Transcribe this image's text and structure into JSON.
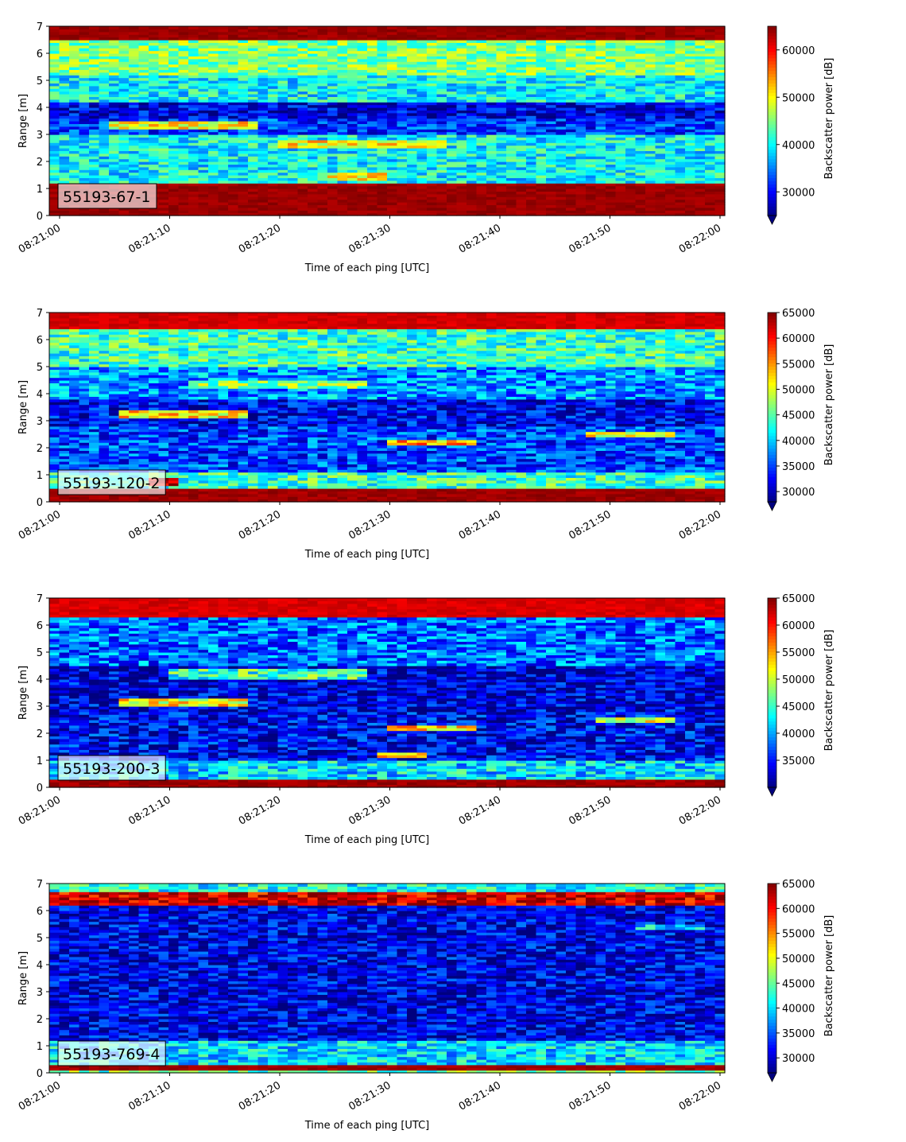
{
  "figure": {
    "colormap": "jet",
    "colors": {
      "jet": [
        "#00007f",
        "#0000ff",
        "#007fff",
        "#00ffff",
        "#7fff7f",
        "#ffff00",
        "#ff7f00",
        "#ff0000",
        "#7f0000"
      ]
    }
  },
  "chart_data": [
    {
      "type": "heatmap",
      "label_box": "55193-67-1",
      "xlabel": "Time of each ping [UTC]",
      "ylabel": "Range [m]",
      "colorbar_label": "Backscatter power [dB]",
      "colorbar_ticks": [
        30000,
        40000,
        50000,
        60000
      ],
      "colorbar_range": [
        25000,
        65000
      ],
      "xlim": [
        "08:21:00",
        "08:22:00"
      ],
      "ylim": [
        0,
        7
      ],
      "x_ticks": [
        "08:21:00",
        "08:21:10",
        "08:21:20",
        "08:21:30",
        "08:21:40",
        "08:21:50",
        "08:22:00"
      ],
      "y_ticks": [
        0,
        1,
        2,
        3,
        4,
        5,
        6,
        7
      ],
      "range_bands": [
        {
          "range": [
            0,
            0.2
          ],
          "value": 65000
        },
        {
          "range": [
            0.2,
            1.2
          ],
          "value": 65000
        },
        {
          "range": [
            1.2,
            2.2
          ],
          "value": 40000
        },
        {
          "range": [
            2.2,
            3.0
          ],
          "value": 40000
        },
        {
          "range": [
            3.0,
            3.6
          ],
          "value": 32000
        },
        {
          "range": [
            3.6,
            4.2
          ],
          "value": 29000
        },
        {
          "range": [
            4.2,
            5.2
          ],
          "value": 40000
        },
        {
          "range": [
            5.2,
            6.5
          ],
          "value": 45000
        },
        {
          "range": [
            6.5,
            7.0
          ],
          "value": 65000
        }
      ],
      "layers": [
        {
          "range": [
            3.2,
            3.5
          ],
          "time": [
            "08:21:04",
            "08:21:18"
          ],
          "value": 50000
        },
        {
          "range": [
            2.5,
            2.8
          ],
          "time": [
            "08:21:20",
            "08:21:35"
          ],
          "value": 50000
        },
        {
          "range": [
            1.3,
            1.6
          ],
          "time": [
            "08:21:24",
            "08:21:30"
          ],
          "value": 50000
        },
        {
          "range": [
            3.7,
            4.2
          ],
          "time": [
            "08:21:38",
            "08:22:00"
          ],
          "value": 29000
        }
      ]
    },
    {
      "type": "heatmap",
      "label_box": "55193-120-2",
      "xlabel": "Time of each ping [UTC]",
      "ylabel": "Range [m]",
      "colorbar_label": "Backscatter power [dB]",
      "colorbar_ticks": [
        30000,
        35000,
        40000,
        45000,
        50000,
        55000,
        60000,
        65000
      ],
      "colorbar_range": [
        28000,
        65000
      ],
      "xlim": [
        "08:21:00",
        "08:22:00"
      ],
      "ylim": [
        0,
        7
      ],
      "x_ticks": [
        "08:21:00",
        "08:21:10",
        "08:21:20",
        "08:21:30",
        "08:21:40",
        "08:21:50",
        "08:22:00"
      ],
      "y_ticks": [
        0,
        1,
        2,
        3,
        4,
        5,
        6,
        7
      ],
      "range_bands": [
        {
          "range": [
            0,
            0.55
          ],
          "value": 65000
        },
        {
          "range": [
            0.55,
            1.1
          ],
          "value": 44000
        },
        {
          "range": [
            1.1,
            2.8
          ],
          "value": 35000
        },
        {
          "range": [
            2.8,
            3.8
          ],
          "value": 32000
        },
        {
          "range": [
            3.8,
            5.0
          ],
          "value": 38000
        },
        {
          "range": [
            5.0,
            6.4
          ],
          "value": 44000
        },
        {
          "range": [
            6.4,
            7.0
          ],
          "value": 63000
        }
      ],
      "layers": [
        {
          "range": [
            3.1,
            3.35
          ],
          "time": [
            "08:21:05",
            "08:21:17"
          ],
          "value": 52000
        },
        {
          "range": [
            4.2,
            4.5
          ],
          "time": [
            "08:21:12",
            "08:21:28"
          ],
          "value": 47000
        },
        {
          "range": [
            2.1,
            2.3
          ],
          "time": [
            "08:21:30",
            "08:21:38"
          ],
          "value": 54000
        },
        {
          "range": [
            2.4,
            2.6
          ],
          "time": [
            "08:21:48",
            "08:21:56"
          ],
          "value": 50000
        },
        {
          "range": [
            0.65,
            0.85
          ],
          "time": [
            "08:21:08",
            "08:21:11"
          ],
          "value": 62000
        }
      ]
    },
    {
      "type": "heatmap",
      "label_box": "55193-200-3",
      "xlabel": "Time of each ping [UTC]",
      "ylabel": "Range [m]",
      "colorbar_label": "Backscatter power [dB]",
      "colorbar_ticks": [
        35000,
        40000,
        45000,
        50000,
        55000,
        60000,
        65000
      ],
      "colorbar_range": [
        30000,
        65000
      ],
      "xlim": [
        "08:21:00",
        "08:22:00"
      ],
      "ylim": [
        0,
        7
      ],
      "x_ticks": [
        "08:21:00",
        "08:21:10",
        "08:21:20",
        "08:21:30",
        "08:21:40",
        "08:21:50",
        "08:22:00"
      ],
      "y_ticks": [
        0,
        1,
        2,
        3,
        4,
        5,
        6,
        7
      ],
      "range_bands": [
        {
          "range": [
            0,
            0.35
          ],
          "value": 65000
        },
        {
          "range": [
            0.35,
            1.0
          ],
          "value": 42000
        },
        {
          "range": [
            1.0,
            2.8
          ],
          "value": 34000
        },
        {
          "range": [
            2.8,
            4.5
          ],
          "value": 33000
        },
        {
          "range": [
            4.5,
            6.3
          ],
          "value": 38000
        },
        {
          "range": [
            6.3,
            7.0
          ],
          "value": 63000
        }
      ],
      "layers": [
        {
          "range": [
            3.05,
            3.3
          ],
          "time": [
            "08:21:05",
            "08:21:17"
          ],
          "value": 52000
        },
        {
          "range": [
            4.0,
            4.4
          ],
          "time": [
            "08:21:10",
            "08:21:28"
          ],
          "value": 45000
        },
        {
          "range": [
            2.1,
            2.3
          ],
          "time": [
            "08:21:30",
            "08:21:38"
          ],
          "value": 53000
        },
        {
          "range": [
            2.4,
            2.6
          ],
          "time": [
            "08:21:49",
            "08:21:56"
          ],
          "value": 50000
        },
        {
          "range": [
            1.1,
            1.3
          ],
          "time": [
            "08:21:29",
            "08:21:33"
          ],
          "value": 55000
        }
      ]
    },
    {
      "type": "heatmap",
      "label_box": "55193-769-4",
      "xlabel": "Time of each ping [UTC]",
      "ylabel": "Range [m]",
      "colorbar_label": "Backscatter power [dB]",
      "colorbar_ticks": [
        30000,
        35000,
        40000,
        45000,
        50000,
        55000,
        60000,
        65000
      ],
      "colorbar_range": [
        27000,
        65000
      ],
      "xlim": [
        "08:21:00",
        "08:22:00"
      ],
      "ylim": [
        0,
        7
      ],
      "x_ticks": [
        "08:21:00",
        "08:21:10",
        "08:21:20",
        "08:21:30",
        "08:21:40",
        "08:21:50",
        "08:22:00"
      ],
      "y_ticks": [
        0,
        1,
        2,
        3,
        4,
        5,
        6,
        7
      ],
      "range_bands": [
        {
          "range": [
            0,
            0.15
          ],
          "value": 45000
        },
        {
          "range": [
            0.15,
            0.35
          ],
          "value": 65000
        },
        {
          "range": [
            0.35,
            1.2
          ],
          "value": 40000
        },
        {
          "range": [
            1.2,
            6.2
          ],
          "value": 31000
        },
        {
          "range": [
            6.2,
            6.7
          ],
          "value": 62000
        },
        {
          "range": [
            6.7,
            7.0
          ],
          "value": 42000
        }
      ],
      "layers": [
        {
          "range": [
            5.3,
            5.5
          ],
          "time": [
            "08:21:52",
            "08:21:59"
          ],
          "value": 40000
        }
      ]
    }
  ]
}
